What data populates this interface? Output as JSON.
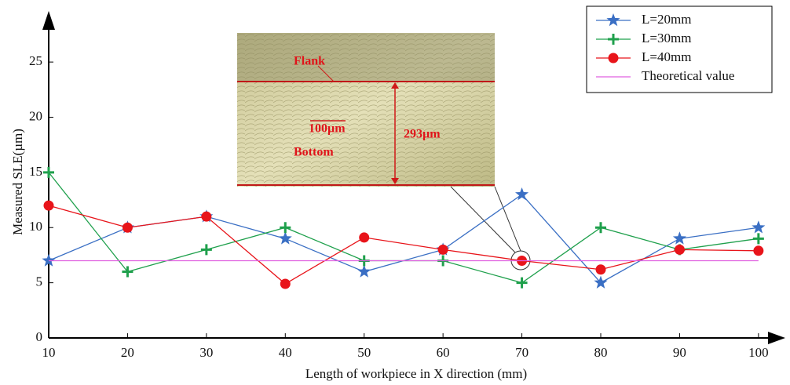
{
  "chart_data": {
    "type": "line",
    "x_label": "Length of workpiece in X direction (mm)",
    "y_label": "Measured SLE(µm)",
    "x": [
      10,
      20,
      30,
      40,
      50,
      60,
      70,
      80,
      90,
      100
    ],
    "series": [
      {
        "name": "L=20mm",
        "color": "#3a6fc4",
        "marker": "star",
        "values": [
          7,
          10,
          11,
          9,
          6,
          8,
          13,
          5,
          9,
          10
        ]
      },
      {
        "name": "L=30mm",
        "color": "#1fa04c",
        "marker": "plus",
        "values": [
          15,
          6,
          8,
          10,
          7,
          7,
          5,
          10,
          8,
          9
        ]
      },
      {
        "name": "L=40mm",
        "color": "#e8141a",
        "marker": "circle",
        "values": [
          12,
          10,
          11,
          4.9,
          9.1,
          8,
          7,
          6.2,
          8,
          7.9
        ]
      },
      {
        "name": "Theoretical value",
        "color": "#e060e0",
        "values": [
          7,
          7,
          7,
          7,
          7,
          7,
          7,
          7,
          7,
          7
        ]
      }
    ],
    "xlim": [
      10,
      103.4
    ],
    "ylim": [
      0,
      29.2
    ],
    "xticks": [
      10,
      20,
      30,
      40,
      50,
      60,
      70,
      80,
      90,
      100
    ],
    "yticks": [
      0,
      5,
      10,
      15,
      20,
      25
    ],
    "legend": "upper right",
    "inset_labels": [
      "Flank",
      "100µm",
      "Bottom",
      "293µm"
    ]
  }
}
